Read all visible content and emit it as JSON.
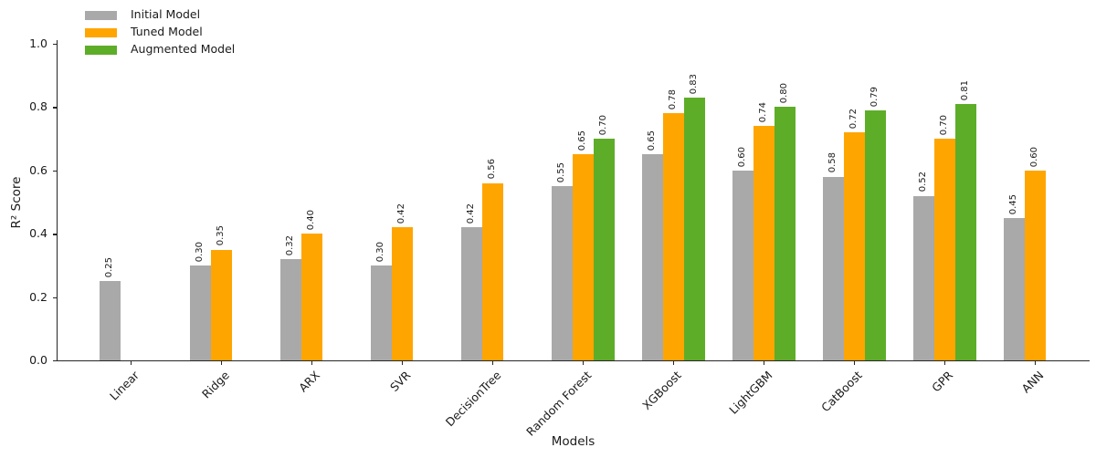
{
  "figure": {
    "background": "#ffffff",
    "text_color": "#1a1a1a",
    "axis_color": "#262626"
  },
  "chart_data": {
    "type": "bar",
    "title": "",
    "xlabel": "Models",
    "ylabel": "R² Score",
    "ylim": [
      0.0,
      1.0
    ],
    "yticks": [
      0.0,
      0.2,
      0.4,
      0.6,
      0.8,
      1.0
    ],
    "grid": false,
    "legend_position": "upper left",
    "value_labels": true,
    "value_label_rotation": 90,
    "xtick_rotation": 45,
    "categories": [
      "Linear",
      "Ridge",
      "ARX",
      "SVR",
      "DecisionTree",
      "Random Forest",
      "XGBoost",
      "LightGBM",
      "CatBoost",
      "GPR",
      "ANN"
    ],
    "series": [
      {
        "name": "Initial Model",
        "color": "#a9a9a9",
        "values": [
          0.25,
          0.3,
          0.32,
          0.3,
          0.42,
          0.55,
          0.65,
          0.6,
          0.58,
          0.52,
          0.45
        ]
      },
      {
        "name": "Tuned Model",
        "color": "#ffa500",
        "values": [
          null,
          0.35,
          0.4,
          0.42,
          0.56,
          0.65,
          0.78,
          0.74,
          0.72,
          0.7,
          0.6
        ]
      },
      {
        "name": "Augmented Model",
        "color": "#5ead28",
        "values": [
          null,
          null,
          null,
          null,
          null,
          0.7,
          0.83,
          0.8,
          0.79,
          0.81,
          null
        ]
      }
    ]
  }
}
